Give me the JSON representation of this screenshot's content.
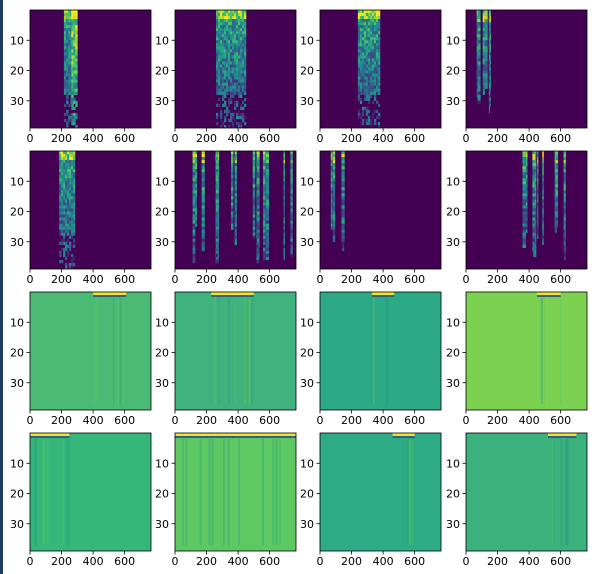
{
  "figure": {
    "layout": {
      "rows": 4,
      "cols": 4
    },
    "edge_color": "#1f3a5a"
  },
  "chart_data": [
    {
      "type": "heatmap",
      "row": 0,
      "col": 0,
      "colormap": "viridis",
      "xlim": [
        0,
        767
      ],
      "ylim": [
        39,
        0
      ],
      "xticks": [
        0,
        200,
        400,
        600
      ],
      "yticks": [
        10,
        20,
        30
      ],
      "background": "#440154",
      "bands": [
        {
          "x0": 215,
          "x1": 270,
          "style": "dense"
        },
        {
          "x0": 262,
          "x1": 300,
          "style": "bright-streak"
        }
      ]
    },
    {
      "type": "heatmap",
      "row": 0,
      "col": 1,
      "colormap": "viridis",
      "xlim": [
        0,
        767
      ],
      "ylim": [
        39,
        0
      ],
      "xticks": [
        0,
        200,
        400,
        600
      ],
      "yticks": [
        10,
        20,
        30
      ],
      "background": "#440154",
      "bands": [
        {
          "x0": 260,
          "x1": 450,
          "style": "dense"
        }
      ]
    },
    {
      "type": "heatmap",
      "row": 0,
      "col": 2,
      "colormap": "viridis",
      "xlim": [
        0,
        767
      ],
      "ylim": [
        39,
        0
      ],
      "xticks": [
        0,
        200,
        400,
        600
      ],
      "yticks": [
        10,
        20,
        30
      ],
      "background": "#440154",
      "bands": [
        {
          "x0": 240,
          "x1": 380,
          "style": "dense"
        }
      ]
    },
    {
      "type": "heatmap",
      "row": 0,
      "col": 3,
      "colormap": "viridis",
      "xlim": [
        0,
        767
      ],
      "ylim": [
        39,
        0
      ],
      "xticks": [
        0,
        200,
        400,
        600
      ],
      "yticks": [
        10,
        20,
        30
      ],
      "background": "#440154",
      "bands": [
        {
          "x0": 60,
          "x1": 80,
          "style": "streak"
        },
        {
          "x0": 100,
          "x1": 120,
          "style": "streak"
        },
        {
          "x0": 140,
          "x1": 150,
          "style": "streak"
        }
      ]
    },
    {
      "type": "heatmap",
      "row": 1,
      "col": 0,
      "colormap": "viridis",
      "xlim": [
        0,
        767
      ],
      "ylim": [
        39,
        0
      ],
      "xticks": [
        0,
        200,
        400,
        600
      ],
      "yticks": [
        10,
        20,
        30
      ],
      "background": "#440154",
      "bands": [
        {
          "x0": 185,
          "x1": 285,
          "style": "dense"
        }
      ]
    },
    {
      "type": "heatmap",
      "row": 1,
      "col": 1,
      "colormap": "viridis",
      "xlim": [
        0,
        767
      ],
      "ylim": [
        39,
        0
      ],
      "xticks": [
        0,
        200,
        400,
        600
      ],
      "yticks": [
        10,
        20,
        30
      ],
      "background": "#440154",
      "bands": [
        {
          "x0": 90,
          "x1": 750,
          "style": "multi-streak"
        }
      ]
    },
    {
      "type": "heatmap",
      "row": 1,
      "col": 2,
      "colormap": "viridis",
      "xlim": [
        0,
        767
      ],
      "ylim": [
        39,
        0
      ],
      "xticks": [
        0,
        200,
        400,
        600
      ],
      "yticks": [
        10,
        20,
        30
      ],
      "background": "#440154",
      "bands": [
        {
          "x0": 45,
          "x1": 90,
          "style": "streak"
        },
        {
          "x0": 130,
          "x1": 145,
          "style": "streak"
        }
      ]
    },
    {
      "type": "heatmap",
      "row": 1,
      "col": 3,
      "colormap": "viridis",
      "xlim": [
        0,
        767
      ],
      "ylim": [
        39,
        0
      ],
      "xticks": [
        0,
        200,
        400,
        600
      ],
      "yticks": [
        10,
        20,
        30
      ],
      "background": "#440154",
      "bands": [
        {
          "x0": 320,
          "x1": 720,
          "style": "multi-streak"
        }
      ]
    },
    {
      "type": "heatmap",
      "row": 2,
      "col": 0,
      "colormap": "viridis",
      "xlim": [
        0,
        767
      ],
      "ylim": [
        39,
        0
      ],
      "xticks": [
        0,
        200,
        400,
        600
      ],
      "yticks": [
        10,
        20,
        30
      ],
      "background": "#4aba74",
      "bands": [
        {
          "x0": 400,
          "x1": 610,
          "style": "top-line"
        }
      ]
    },
    {
      "type": "heatmap",
      "row": 2,
      "col": 1,
      "colormap": "viridis",
      "xlim": [
        0,
        767
      ],
      "ylim": [
        39,
        0
      ],
      "xticks": [
        0,
        200,
        400,
        600
      ],
      "yticks": [
        10,
        20,
        30
      ],
      "background": "#3fb27d",
      "bands": [
        {
          "x0": 230,
          "x1": 500,
          "style": "top-line"
        }
      ]
    },
    {
      "type": "heatmap",
      "row": 2,
      "col": 2,
      "colormap": "viridis",
      "xlim": [
        0,
        767
      ],
      "ylim": [
        39,
        0
      ],
      "xticks": [
        0,
        200,
        400,
        600
      ],
      "yticks": [
        10,
        20,
        30
      ],
      "background": "#2ca985",
      "bands": [
        {
          "x0": 330,
          "x1": 470,
          "style": "top-line"
        }
      ]
    },
    {
      "type": "heatmap",
      "row": 2,
      "col": 3,
      "colormap": "viridis",
      "xlim": [
        0,
        767
      ],
      "ylim": [
        39,
        0
      ],
      "xticks": [
        0,
        200,
        400,
        600
      ],
      "yticks": [
        10,
        20,
        30
      ],
      "background": "#7cd250",
      "bands": [
        {
          "x0": 450,
          "x1": 600,
          "style": "top-line"
        }
      ]
    },
    {
      "type": "heatmap",
      "row": 3,
      "col": 0,
      "colormap": "viridis",
      "xlim": [
        0,
        767
      ],
      "ylim": [
        39,
        0
      ],
      "xticks": [
        0,
        200,
        400,
        600
      ],
      "yticks": [
        10,
        20,
        30
      ],
      "background": "#35b779",
      "bands": [
        {
          "x0": 0,
          "x1": 250,
          "style": "top-line"
        }
      ]
    },
    {
      "type": "heatmap",
      "row": 3,
      "col": 1,
      "colormap": "viridis",
      "xlim": [
        0,
        767
      ],
      "ylim": [
        39,
        0
      ],
      "xticks": [
        0,
        200,
        400,
        600
      ],
      "yticks": [
        10,
        20,
        30
      ],
      "background": "#5ec962",
      "bands": [
        {
          "x0": 0,
          "x1": 767,
          "style": "top-line"
        }
      ]
    },
    {
      "type": "heatmap",
      "row": 3,
      "col": 2,
      "colormap": "viridis",
      "xlim": [
        0,
        767
      ],
      "ylim": [
        39,
        0
      ],
      "xticks": [
        0,
        200,
        400,
        600
      ],
      "yticks": [
        10,
        20,
        30
      ],
      "background": "#2cab84",
      "bands": [
        {
          "x0": 460,
          "x1": 600,
          "style": "top-line"
        }
      ]
    },
    {
      "type": "heatmap",
      "row": 3,
      "col": 3,
      "colormap": "viridis",
      "xlim": [
        0,
        767
      ],
      "ylim": [
        39,
        0
      ],
      "xticks": [
        0,
        200,
        400,
        600
      ],
      "yticks": [
        10,
        20,
        30
      ],
      "background": "#3bb17b",
      "bands": [
        {
          "x0": 520,
          "x1": 700,
          "style": "top-line"
        }
      ]
    }
  ]
}
